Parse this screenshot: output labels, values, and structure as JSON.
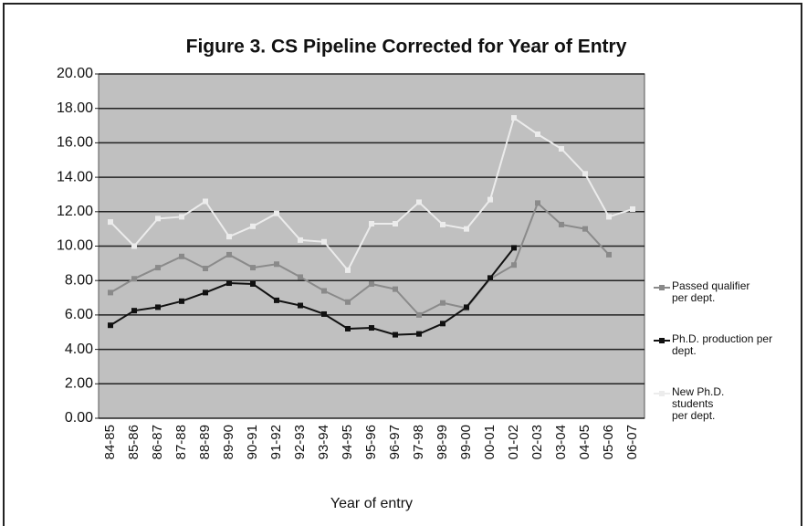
{
  "chart_data": {
    "type": "line",
    "title": "Figure 3. CS Pipeline Corrected for Year of Entry",
    "x_label": "Year of entry",
    "categories": [
      "84-85",
      "85-86",
      "86-87",
      "87-88",
      "88-89",
      "89-90",
      "90-91",
      "91-92",
      "92-93",
      "93-94",
      "94-95",
      "95-96",
      "96-97",
      "97-98",
      "98-99",
      "99-00",
      "00-01",
      "01-02",
      "02-03",
      "03-04",
      "04-05",
      "05-06",
      "06-07"
    ],
    "series": [
      {
        "name": "Passed qualifier per dept.",
        "color": "#8a8a8a",
        "values": [
          7.3,
          8.1,
          8.75,
          9.4,
          8.7,
          9.5,
          8.75,
          8.95,
          8.2,
          7.4,
          6.75,
          7.8,
          7.5,
          6.0,
          6.7,
          6.4,
          8.1,
          8.9,
          12.5,
          11.25,
          11.0,
          9.5,
          null
        ]
      },
      {
        "name": "Ph.D. production per dept.",
        "color": "#111111",
        "values": [
          5.4,
          6.25,
          6.45,
          6.8,
          7.3,
          7.85,
          7.8,
          6.85,
          6.55,
          6.05,
          5.2,
          5.25,
          4.85,
          4.9,
          5.5,
          6.45,
          8.15,
          9.9,
          null,
          null,
          null,
          null,
          null
        ]
      },
      {
        "name": "New Ph.D. students per dept.",
        "color": "#ececec",
        "values": [
          11.4,
          10.0,
          11.6,
          11.7,
          12.6,
          10.55,
          11.15,
          11.9,
          10.35,
          10.25,
          8.6,
          11.3,
          11.3,
          12.55,
          11.25,
          11.0,
          12.7,
          17.45,
          16.5,
          15.65,
          14.2,
          11.7,
          12.15
        ]
      }
    ],
    "ylim": [
      0,
      20
    ],
    "yticks": [
      {
        "value": 0,
        "label": "0.00"
      },
      {
        "value": 2,
        "label": "2.00"
      },
      {
        "value": 4,
        "label": "4.00"
      },
      {
        "value": 6,
        "label": "6.00"
      },
      {
        "value": 8,
        "label": "8.00"
      },
      {
        "value": 10,
        "label": "10.00"
      },
      {
        "value": 12,
        "label": "12.00"
      },
      {
        "value": 14,
        "label": "14.00"
      },
      {
        "value": 16,
        "label": "16.00"
      },
      {
        "value": 18,
        "label": "18.00"
      },
      {
        "value": 20,
        "label": "20.00"
      }
    ],
    "grid": true,
    "legend": "right",
    "plot_background": "#c0c0c0"
  }
}
